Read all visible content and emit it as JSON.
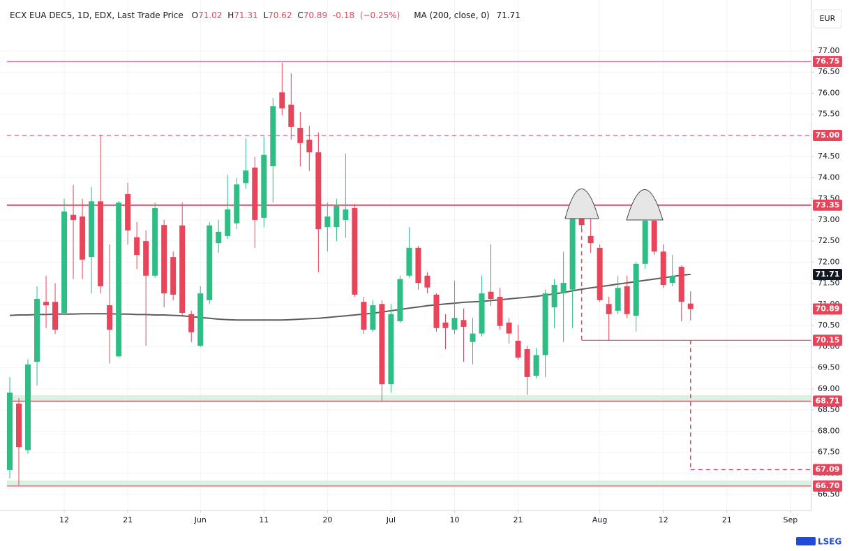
{
  "chart_data": {
    "type": "candlestick",
    "title": "ECX EUA DEC5, 1D, EDX, Last Trade Price",
    "ohlc_letters": [
      "O",
      "H",
      "L",
      "C"
    ],
    "change": "-0.18",
    "change_pct": "(−0.25%)",
    "ma_name": "MA (200, close, 0)",
    "currency": "EUR",
    "brand": "LSEG",
    "up_color": "#2ebd85",
    "down_color": "#e8445a",
    "ma_color": "#5d5d5d",
    "level_color": "#e8445a",
    "grid": true,
    "open": [
      67.08,
      68.65,
      67.55,
      69.64,
      71.06,
      71.06,
      70.8,
      73.12,
      73.08,
      72.12,
      73.44,
      70.98,
      69.77,
      73.61,
      72.59,
      72.5,
      71.68,
      72.88,
      72.12,
      72.87,
      70.77,
      70.02,
      71.1,
      72.45,
      72.62,
      72.92,
      73.87,
      74.24,
      73.05,
      74.27,
      76.02,
      75.73,
      75.18,
      74.9,
      74.6,
      72.83,
      72.83,
      73.0,
      73.28,
      71.06,
      70.4,
      71.01,
      69.11,
      70.6,
      71.68,
      72.34,
      71.68,
      71.23,
      70.57,
      70.4,
      70.63,
      70.11,
      70.31,
      71.3,
      71.18,
      70.57,
      70.14,
      69.94,
      69.31,
      69.8,
      70.93,
      71.26,
      71.35,
      73.28,
      72.62,
      72.34,
      71.01,
      70.85,
      71.43,
      70.73,
      71.96,
      72.98,
      72.25,
      71.51,
      71.89,
      71.02
    ],
    "high": [
      69.28,
      68.78,
      69.7,
      71.43,
      71.68,
      71.5,
      73.5,
      73.83,
      73.5,
      73.78,
      75.02,
      72.42,
      73.45,
      73.88,
      72.95,
      72.75,
      73.41,
      73.0,
      72.25,
      73.41,
      70.85,
      71.43,
      72.95,
      73.0,
      74.07,
      73.99,
      74.93,
      74.49,
      74.98,
      75.89,
      76.72,
      76.47,
      75.56,
      75.23,
      75.07,
      73.41,
      73.5,
      74.57,
      73.38,
      71.18,
      71.1,
      71.1,
      71.01,
      71.68,
      72.83,
      72.39,
      71.76,
      71.26,
      70.77,
      71.56,
      70.9,
      70.68,
      71.68,
      72.42,
      71.39,
      70.68,
      70.52,
      70.02,
      69.97,
      71.35,
      71.6,
      72.25,
      73.41,
      73.41,
      73.05,
      72.42,
      71.18,
      71.68,
      71.68,
      72.01,
      73.33,
      73.16,
      72.42,
      72.17,
      71.92,
      71.31
    ],
    "low": [
      66.88,
      66.72,
      67.46,
      69.08,
      70.44,
      70.3,
      70.77,
      71.6,
      71.6,
      71.26,
      71.26,
      69.6,
      69.74,
      72.42,
      71.84,
      70.02,
      71.63,
      70.93,
      71.1,
      70.73,
      70.11,
      69.99,
      71.01,
      72.22,
      72.55,
      72.78,
      73.74,
      72.34,
      72.83,
      73.41,
      75.48,
      74.9,
      74.27,
      74.16,
      71.76,
      72.25,
      72.5,
      72.58,
      71.18,
      70.3,
      70.35,
      68.7,
      68.91,
      70.57,
      71.63,
      71.35,
      71.26,
      70.35,
      69.94,
      70.3,
      69.64,
      69.58,
      70.24,
      70.96,
      70.4,
      70.07,
      69.69,
      68.86,
      69.25,
      69.28,
      70.44,
      70.11,
      70.44,
      72.75,
      72.22,
      71.06,
      70.14,
      70.77,
      70.68,
      70.35,
      71.84,
      72.17,
      71.39,
      71.43,
      70.6,
      70.62
    ],
    "close": [
      68.91,
      67.62,
      69.58,
      71.13,
      70.98,
      70.4,
      73.2,
      73.0,
      72.06,
      73.44,
      71.43,
      70.4,
      73.41,
      72.75,
      72.17,
      71.68,
      73.28,
      71.26,
      71.23,
      70.8,
      70.34,
      71.26,
      72.87,
      72.72,
      73.25,
      73.84,
      74.17,
      73.0,
      74.54,
      75.69,
      75.64,
      75.2,
      74.82,
      74.6,
      72.78,
      73.08,
      73.33,
      73.25,
      71.23,
      70.4,
      70.98,
      69.11,
      70.77,
      71.6,
      72.34,
      71.51,
      71.4,
      70.44,
      70.44,
      70.68,
      70.47,
      70.31,
      71.26,
      71.13,
      70.49,
      70.31,
      69.74,
      69.28,
      69.8,
      71.26,
      71.46,
      71.51,
      73.28,
      72.88,
      72.45,
      71.1,
      70.77,
      71.39,
      70.77,
      71.96,
      72.98,
      72.25,
      71.46,
      71.68,
      71.06,
      70.89
    ],
    "ma": [
      70.74,
      70.75,
      70.75,
      70.76,
      70.76,
      70.77,
      70.77,
      70.77,
      70.78,
      70.78,
      70.78,
      70.78,
      70.77,
      70.77,
      70.76,
      70.76,
      70.75,
      70.75,
      70.74,
      70.73,
      70.71,
      70.69,
      70.67,
      70.65,
      70.64,
      70.63,
      70.63,
      70.63,
      70.63,
      70.63,
      70.63,
      70.64,
      70.65,
      70.66,
      70.67,
      70.69,
      70.71,
      70.73,
      70.75,
      70.77,
      70.79,
      70.82,
      70.85,
      70.88,
      70.91,
      70.94,
      70.97,
      70.99,
      71.01,
      71.03,
      71.05,
      71.06,
      71.07,
      71.09,
      71.11,
      71.13,
      71.15,
      71.17,
      71.19,
      71.22,
      71.25,
      71.28,
      71.32,
      71.36,
      71.39,
      71.42,
      71.45,
      71.48,
      71.51,
      71.54,
      71.57,
      71.6,
      71.63,
      71.66,
      71.69,
      71.71
    ],
    "xticks": [
      {
        "value": 6,
        "label": "12"
      },
      {
        "value": 13,
        "label": "21"
      },
      {
        "value": 21,
        "label": "Jun"
      },
      {
        "value": 28,
        "label": "11"
      },
      {
        "value": 35,
        "label": "20"
      },
      {
        "value": 42,
        "label": "Jul"
      },
      {
        "value": 49,
        "label": "10"
      },
      {
        "value": 56,
        "label": "21"
      },
      {
        "value": 65,
        "label": "Aug"
      },
      {
        "value": 72,
        "label": "12"
      },
      {
        "value": 79,
        "label": "21"
      },
      {
        "value": 86,
        "label": "Sep"
      }
    ],
    "ylim": [
      66.2,
      77.5
    ],
    "yticks": [
      {
        "value": 77,
        "label": "77.00"
      },
      {
        "value": 76.5,
        "label": "76.50"
      },
      {
        "value": 76,
        "label": "76.00"
      },
      {
        "value": 75.5,
        "label": "75.50"
      },
      {
        "value": 75,
        "label": "75.00"
      },
      {
        "value": 74.5,
        "label": "74.50"
      },
      {
        "value": 74,
        "label": "74.00"
      },
      {
        "value": 73.5,
        "label": "73.50"
      },
      {
        "value": 73,
        "label": "73.00"
      },
      {
        "value": 72.5,
        "label": "72.50"
      },
      {
        "value": 72,
        "label": "72.00"
      },
      {
        "value": 71.5,
        "label": "71.50"
      },
      {
        "value": 71,
        "label": "71.00"
      },
      {
        "value": 70.5,
        "label": "70.50"
      },
      {
        "value": 70,
        "label": "70.00"
      },
      {
        "value": 69.5,
        "label": "69.50"
      },
      {
        "value": 69,
        "label": "69.00"
      },
      {
        "value": 68.5,
        "label": "68.50"
      },
      {
        "value": 68,
        "label": "68.00"
      },
      {
        "value": 67.5,
        "label": "67.50"
      },
      {
        "value": 67,
        "label": "67.00"
      },
      {
        "value": 66.5,
        "label": "66.50"
      }
    ],
    "levels": [
      {
        "value": 76.75,
        "style": "solid"
      },
      {
        "value": 75,
        "label": "75.00",
        "style": "dashed"
      },
      {
        "value": 73.35,
        "style": "thick"
      },
      {
        "value": 70.15,
        "style": "solid",
        "start": 63
      },
      {
        "value": 68.71,
        "style": "solid",
        "band": 68.85
      },
      {
        "value": 67.09,
        "style": "dashed",
        "start": 75
      },
      {
        "value": 66.7,
        "label": "66.70",
        "style": "solid",
        "band": 66.83
      }
    ]
  }
}
